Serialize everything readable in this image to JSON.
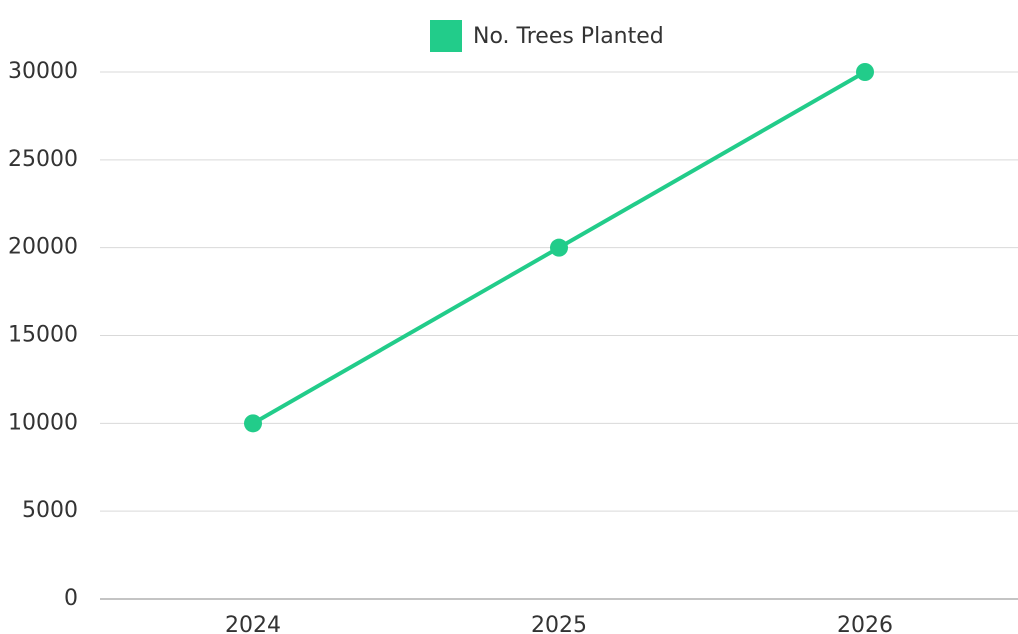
{
  "chart_data": {
    "type": "line",
    "categories": [
      "2024",
      "2025",
      "2026"
    ],
    "series": [
      {
        "name": "No. Trees Planted",
        "color": "#22cc8a",
        "values": [
          10000,
          20000,
          30000
        ]
      }
    ],
    "ylim": [
      0,
      30000
    ],
    "yticks": [
      0,
      5000,
      10000,
      15000,
      20000,
      25000,
      30000
    ],
    "grid": true,
    "legend": "top"
  }
}
